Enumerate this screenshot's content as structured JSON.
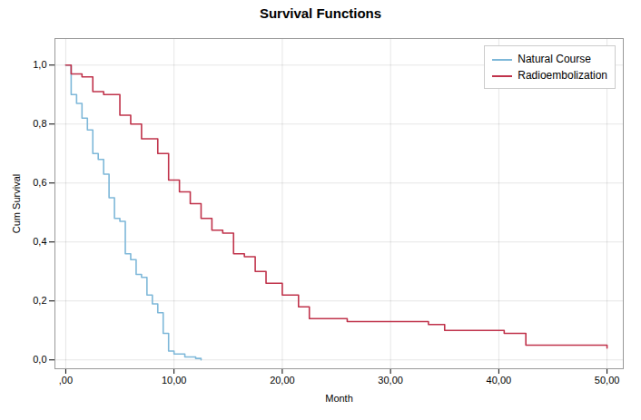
{
  "chart_data": {
    "type": "step",
    "title": "Survival Functions",
    "xlabel": "Month",
    "ylabel": "Cum Survival",
    "xlim": [
      -1.0,
      51.5
    ],
    "ylim": [
      -0.03,
      1.09
    ],
    "xticks": [
      {
        "value": 0,
        "label": ",00"
      },
      {
        "value": 10,
        "label": "10,00"
      },
      {
        "value": 20,
        "label": "20,00"
      },
      {
        "value": 30,
        "label": "30,00"
      },
      {
        "value": 40,
        "label": "40,00"
      },
      {
        "value": 50,
        "label": "50,00"
      }
    ],
    "yticks": [
      {
        "value": 0.0,
        "label": "0,0"
      },
      {
        "value": 0.2,
        "label": "0,2"
      },
      {
        "value": 0.4,
        "label": "0,4"
      },
      {
        "value": 0.6,
        "label": "0,6"
      },
      {
        "value": 0.8,
        "label": "0,8"
      },
      {
        "value": 1.0,
        "label": "1,0"
      }
    ],
    "grid": true,
    "legend": "upper right",
    "series": [
      {
        "name": "Natural Course",
        "color": "#7EB8D9",
        "x": [
          0,
          0.5,
          1.0,
          1.5,
          2.0,
          2.5,
          3.0,
          3.5,
          4.0,
          4.5,
          5.0,
          5.5,
          6.0,
          6.5,
          7.0,
          7.5,
          8.0,
          8.5,
          9.0,
          9.5,
          10.0,
          10.5,
          11.0,
          11.5,
          12.0,
          12.5
        ],
        "values": [
          1.0,
          0.9,
          0.87,
          0.82,
          0.78,
          0.7,
          0.68,
          0.63,
          0.55,
          0.48,
          0.47,
          0.36,
          0.34,
          0.29,
          0.28,
          0.22,
          0.19,
          0.16,
          0.09,
          0.03,
          0.02,
          0.02,
          0.01,
          0.01,
          0.005,
          0.0
        ]
      },
      {
        "name": "Radioembolization",
        "color": "#C0334B",
        "x": [
          0,
          0.5,
          1.5,
          2.5,
          3.5,
          5.0,
          6.0,
          7.0,
          8.5,
          9.5,
          10.5,
          11.5,
          12.5,
          13.5,
          14.5,
          15.5,
          16.5,
          17.5,
          18.5,
          20.0,
          21.5,
          22.5,
          26.0,
          28.0,
          33.5,
          35.0,
          40.5,
          42.5,
          48.0,
          50.0
        ],
        "values": [
          1.0,
          0.97,
          0.96,
          0.91,
          0.9,
          0.83,
          0.8,
          0.75,
          0.7,
          0.61,
          0.57,
          0.53,
          0.48,
          0.44,
          0.43,
          0.36,
          0.35,
          0.3,
          0.26,
          0.22,
          0.18,
          0.14,
          0.13,
          0.13,
          0.12,
          0.1,
          0.09,
          0.05,
          0.05,
          0.04
        ]
      }
    ]
  }
}
